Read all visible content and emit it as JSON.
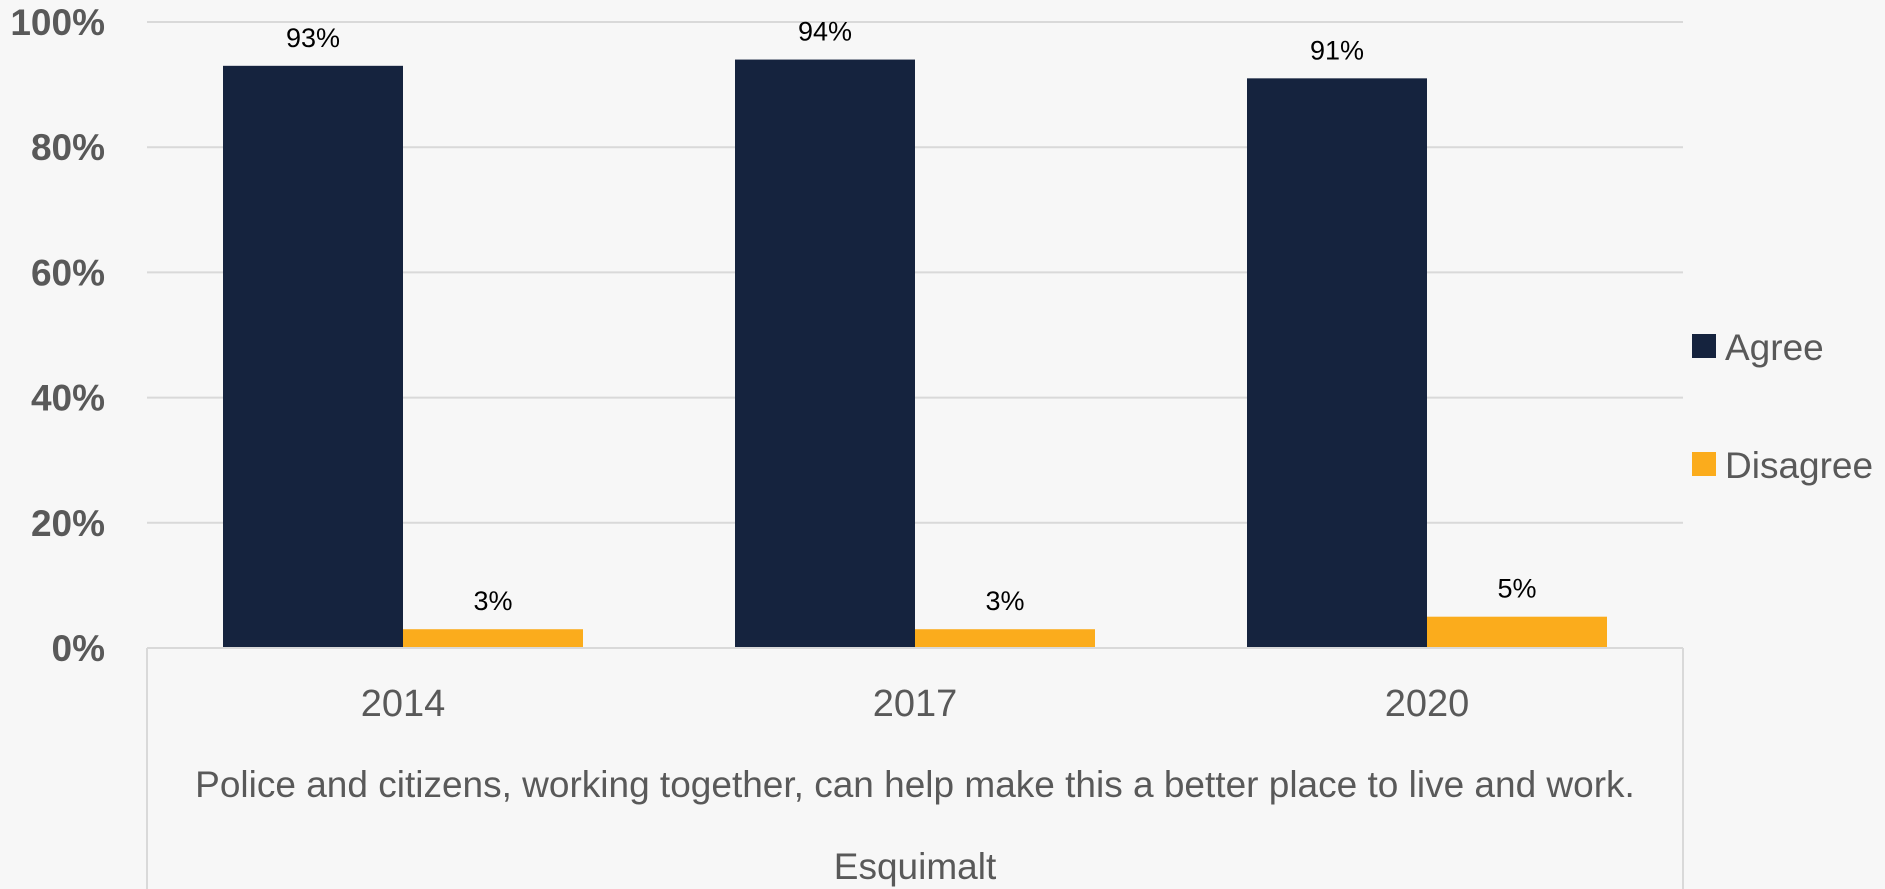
{
  "chart_data": {
    "type": "bar",
    "categories": [
      "2014",
      "2017",
      "2020"
    ],
    "series": [
      {
        "name": "Agree",
        "values": [
          93,
          94,
          91
        ],
        "labels": [
          "93%",
          "94%",
          "91%"
        ],
        "color": "#15233e"
      },
      {
        "name": "Disagree",
        "values": [
          3,
          3,
          5
        ],
        "labels": [
          "3%",
          "3%",
          "5%"
        ],
        "color": "#fbac1c"
      }
    ],
    "ylim": [
      0,
      100
    ],
    "yticks": [
      {
        "value": 0,
        "label": "0%"
      },
      {
        "value": 20,
        "label": "20%"
      },
      {
        "value": 40,
        "label": "40%"
      },
      {
        "value": 60,
        "label": "60%"
      },
      {
        "value": 80,
        "label": "80%"
      },
      {
        "value": 100,
        "label": "100%"
      }
    ],
    "group_labels": [
      "Police and citizens, working together, can help make this a better place to live and work.",
      "Esquimalt"
    ],
    "grid": true,
    "legend_position": "right"
  },
  "colors": {
    "background": "#f7f7f7",
    "grid": "#d9d9d9",
    "axis_text": "#595959"
  }
}
